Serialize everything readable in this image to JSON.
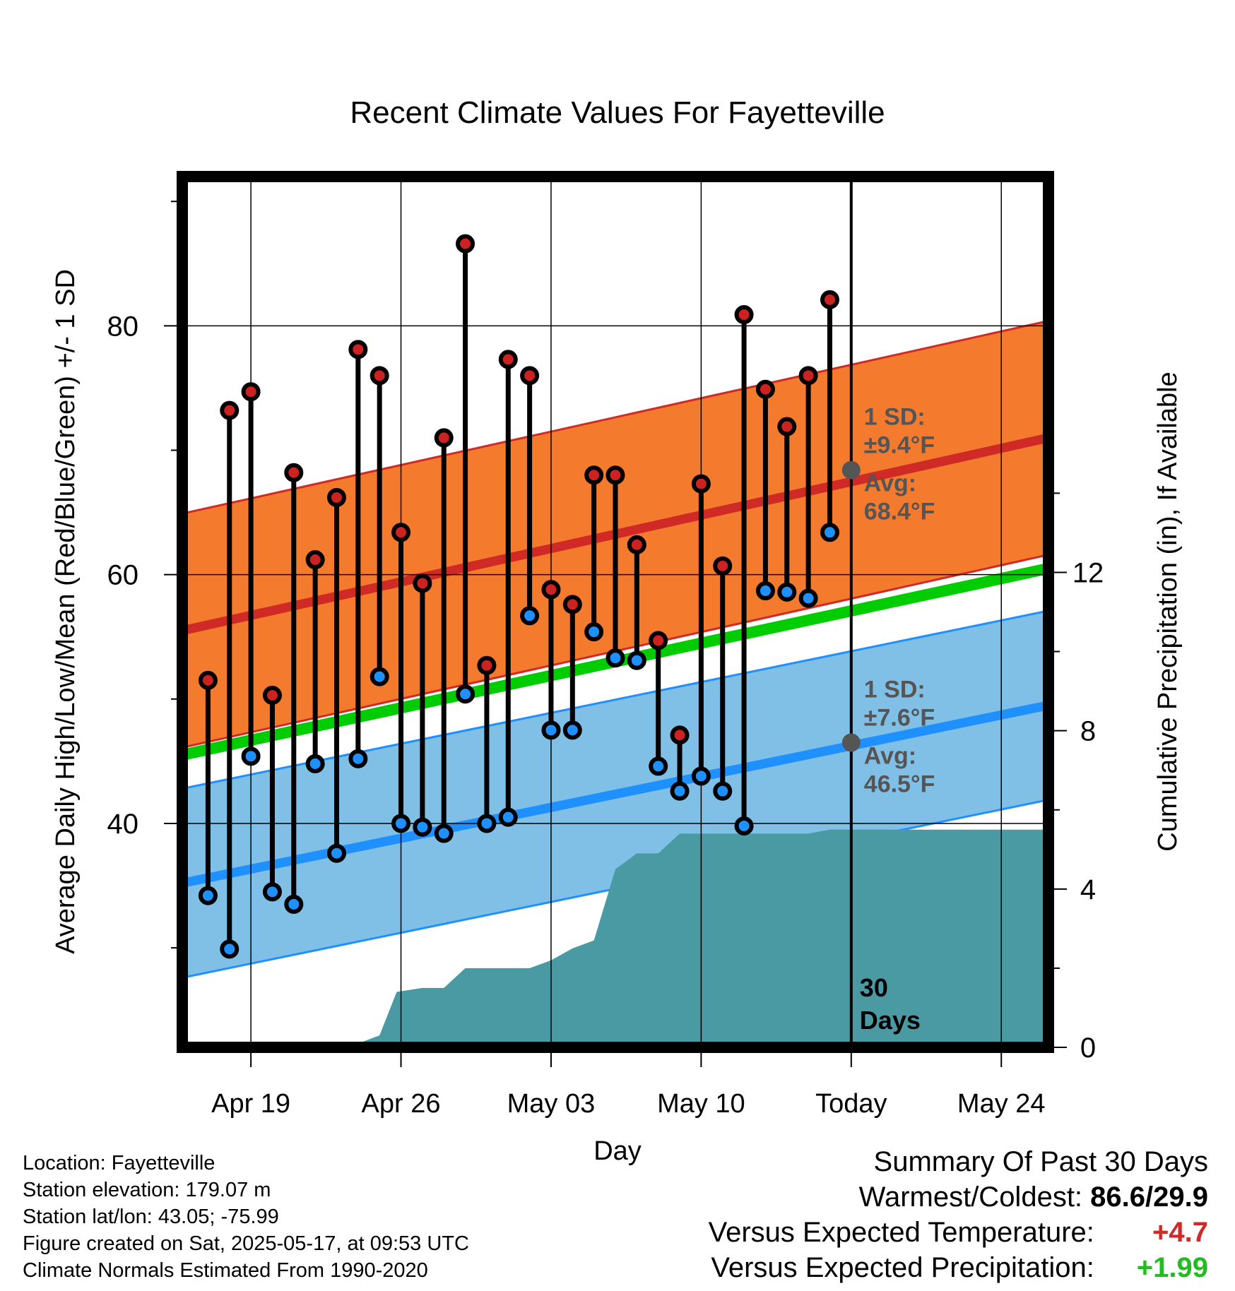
{
  "chart_data": {
    "type": "bar",
    "title": "Recent Climate Values For Fayetteville",
    "xlabel": "Day",
    "ylabel_left": "Average Daily High/Low/Mean (Red/Blue/Green) +/- 1 SD",
    "ylabel_right": "Cumulative Precipitation (in), If Available",
    "xlim": [
      -3.2,
      37.2
    ],
    "ylim_left": [
      22,
      92
    ],
    "ylim_right": [
      0,
      22
    ],
    "x_ticks": [
      {
        "x": 0,
        "label": "Apr 19"
      },
      {
        "x": 7,
        "label": "Apr 26"
      },
      {
        "x": 14,
        "label": "May 03"
      },
      {
        "x": 21,
        "label": "May 10"
      },
      {
        "x": 28,
        "label": "Today"
      },
      {
        "x": 35,
        "label": "May 24"
      }
    ],
    "y_ticks_left": [
      40,
      60,
      80
    ],
    "y_ticks_right": [
      0,
      4,
      8,
      12
    ],
    "today_x": 28,
    "today_label": "30\nDays",
    "series": [
      {
        "name": "High",
        "x": [
          -2,
          -1,
          0,
          1,
          2,
          3,
          4,
          5,
          6,
          7,
          8,
          9,
          10,
          11,
          12,
          13,
          14,
          15,
          16,
          17,
          18,
          19,
          20,
          21,
          22,
          23,
          24,
          25,
          26,
          27
        ],
        "values": [
          51.5,
          73.2,
          74.7,
          50.3,
          68.2,
          61.2,
          66.2,
          78.1,
          76.0,
          63.4,
          59.3,
          71.0,
          86.6,
          52.7,
          77.3,
          76.0,
          58.8,
          57.6,
          68.0,
          68.0,
          62.4,
          54.7,
          47.1,
          67.3,
          60.7,
          80.9,
          74.9,
          71.9,
          76.0,
          82.1
        ]
      },
      {
        "name": "Low",
        "x": [
          -2,
          -1,
          0,
          1,
          2,
          3,
          4,
          5,
          6,
          7,
          8,
          9,
          10,
          11,
          12,
          13,
          14,
          15,
          16,
          17,
          18,
          19,
          20,
          21,
          22,
          23,
          24,
          25,
          26,
          27
        ],
        "values": [
          34.2,
          29.9,
          45.4,
          34.5,
          33.5,
          44.8,
          37.6,
          45.2,
          51.8,
          40.0,
          39.7,
          39.2,
          50.4,
          40.0,
          40.5,
          56.7,
          47.5,
          47.5,
          55.4,
          53.3,
          53.1,
          44.6,
          42.6,
          43.8,
          42.6,
          39.8,
          58.7,
          58.6,
          58.1,
          63.4
        ]
      }
    ],
    "normals": {
      "x": [
        -3.2,
        37.2
      ],
      "high_avg": [
        55.5,
        71.0
      ],
      "high_sd": 9.4,
      "low_avg": [
        35.2,
        49.5
      ],
      "low_sd": 7.6,
      "mean_avg": [
        45.5,
        60.5
      ]
    },
    "precip": {
      "x": [
        -3.2,
        0,
        2,
        4,
        5,
        6,
        6.8,
        8,
        9,
        10,
        11,
        12,
        13,
        14,
        15,
        16,
        17,
        18,
        19,
        20,
        21,
        22,
        23,
        24,
        25,
        26,
        27,
        28,
        37.2
      ],
      "values": [
        0,
        0.05,
        0.1,
        0.1,
        0.1,
        0.3,
        1.4,
        1.5,
        1.5,
        2.0,
        2.0,
        2.0,
        2.0,
        2.2,
        2.5,
        2.7,
        4.5,
        4.9,
        4.9,
        5.4,
        5.4,
        5.4,
        5.4,
        5.4,
        5.4,
        5.4,
        5.5,
        5.5,
        5.5
      ]
    },
    "annotations": {
      "high": {
        "sd_label": "1 SD:",
        "sd_value": "±9.4°F",
        "avg_label": "Avg:",
        "avg_value": "68.4°F",
        "avg": 68.4
      },
      "low": {
        "sd_label": "1 SD:",
        "sd_value": "±7.6°F",
        "avg_label": "Avg:",
        "avg_value": "46.5°F",
        "avg": 46.5
      }
    },
    "colors": {
      "high_band": "#f47a2e",
      "high_line": "#d02a26",
      "low_band": "#80bfe6",
      "low_line": "#1e90ff",
      "mean_line": "#00cc00",
      "precip": "#4a9aa3",
      "high_dot": "#cc2222",
      "low_dot": "#1e90ff",
      "annotation": "#555555"
    }
  },
  "info": {
    "location": "Location: Fayetteville",
    "elevation": "Station elevation: 179.07 m",
    "latlon": "Station lat/lon: 43.05; -75.99",
    "created": "Figure created on Sat, 2025-05-17, at 09:53 UTC",
    "normals": "Climate Normals Estimated From 1990-2020"
  },
  "summary": {
    "title": "Summary Of Past 30 Days",
    "warm_cold_label": "Warmest/Coldest:",
    "warm_cold_value": "86.6/29.9",
    "temp_label": "Versus Expected Temperature:",
    "temp_value": "+4.7",
    "temp_color": "#d02a26",
    "precip_label": "Versus Expected Precipitation:",
    "precip_value": "+1.99",
    "precip_color": "#22bb22"
  }
}
